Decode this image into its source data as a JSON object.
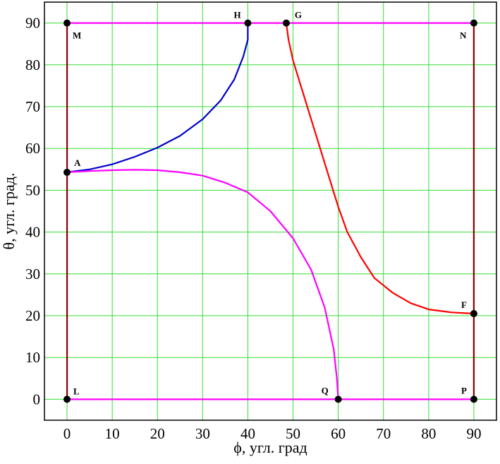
{
  "chart_data": {
    "type": "line",
    "xlabel": "ϕ, угл. град",
    "ylabel": "θ, угл. град.",
    "xlim": [
      -5,
      95
    ],
    "ylim": [
      -5,
      95
    ],
    "xticks": [
      0,
      10,
      20,
      30,
      40,
      50,
      60,
      70,
      80,
      90
    ],
    "yticks": [
      0,
      10,
      20,
      30,
      40,
      50,
      60,
      70,
      80,
      90
    ],
    "grid": true,
    "series": [
      {
        "color": "#ff00ff",
        "points": [
          [
            0,
            90
          ],
          [
            90,
            90
          ]
        ]
      },
      {
        "color": "#ff00ff",
        "points": [
          [
            0,
            0
          ],
          [
            90,
            0
          ]
        ]
      },
      {
        "color": "#8b0000",
        "points": [
          [
            0,
            0
          ],
          [
            0,
            90
          ]
        ]
      },
      {
        "color": "#8b0000",
        "points": [
          [
            90,
            0
          ],
          [
            90,
            90
          ]
        ]
      },
      {
        "color": "#0000cc",
        "points": [
          [
            0,
            54.3
          ],
          [
            5,
            55
          ],
          [
            10,
            56.2
          ],
          [
            15,
            58
          ],
          [
            20,
            60.2
          ],
          [
            25,
            63
          ],
          [
            30,
            67
          ],
          [
            34,
            71.5
          ],
          [
            37,
            76.5
          ],
          [
            39,
            82
          ],
          [
            40,
            86
          ],
          [
            40,
            90
          ]
        ]
      },
      {
        "color": "#ff0000",
        "points": [
          [
            48.5,
            90
          ],
          [
            49,
            86
          ],
          [
            50,
            81
          ],
          [
            52,
            74
          ],
          [
            54,
            67
          ],
          [
            56,
            60
          ],
          [
            58,
            53
          ],
          [
            60,
            46
          ],
          [
            62,
            40
          ],
          [
            65,
            34
          ],
          [
            68,
            29
          ],
          [
            72,
            25.5
          ],
          [
            76,
            23
          ],
          [
            80,
            21.5
          ],
          [
            85,
            20.8
          ],
          [
            90,
            20.5
          ]
        ]
      },
      {
        "color": "#ff00ff",
        "points": [
          [
            0,
            54.3
          ],
          [
            5,
            54.6
          ],
          [
            10,
            54.8
          ],
          [
            15,
            54.9
          ],
          [
            20,
            54.8
          ],
          [
            25,
            54.3
          ],
          [
            30,
            53.5
          ],
          [
            35,
            51.8
          ],
          [
            40,
            49.5
          ],
          [
            45,
            45
          ],
          [
            50,
            38.5
          ],
          [
            54,
            31
          ],
          [
            57,
            22
          ],
          [
            59,
            12
          ],
          [
            59.7,
            5
          ],
          [
            60,
            0
          ]
        ]
      }
    ],
    "points": [
      {
        "label": "M",
        "x": 0,
        "y": 90
      },
      {
        "label": "H",
        "x": 40,
        "y": 90
      },
      {
        "label": "G",
        "x": 48.5,
        "y": 90
      },
      {
        "label": "N",
        "x": 90,
        "y": 90
      },
      {
        "label": "A",
        "x": 0,
        "y": 54.3
      },
      {
        "label": "F",
        "x": 90,
        "y": 20.5
      },
      {
        "label": "L",
        "x": 0,
        "y": 0
      },
      {
        "label": "Q",
        "x": 60,
        "y": 0
      },
      {
        "label": "P",
        "x": 90,
        "y": 0
      }
    ]
  },
  "colors": {
    "grid": "#33dd33",
    "frame": "#000000",
    "marker": "#000000"
  }
}
